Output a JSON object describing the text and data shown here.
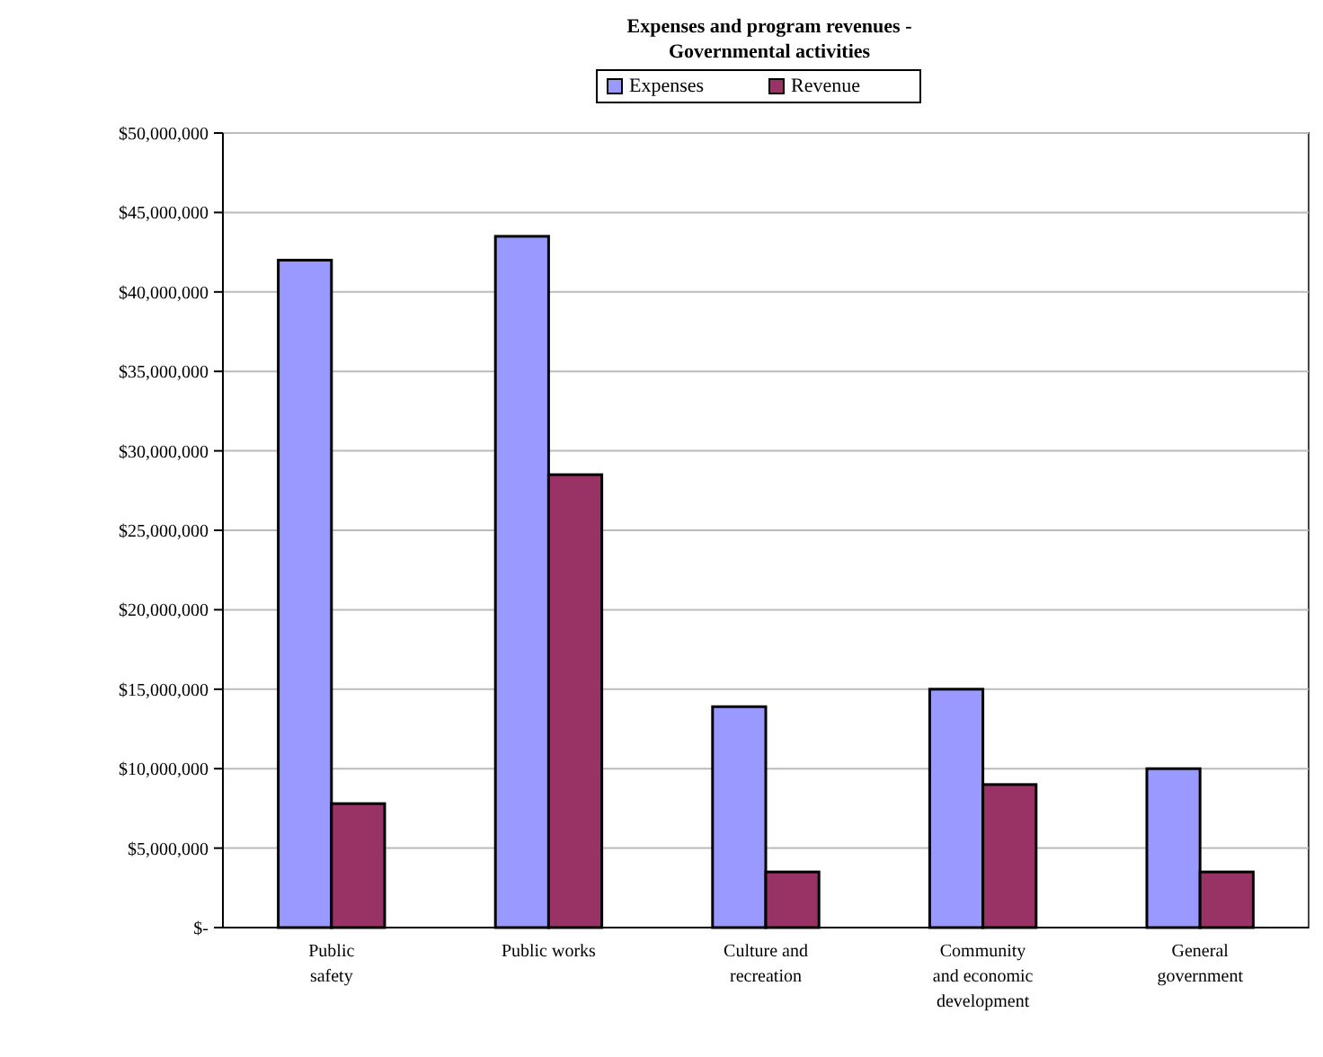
{
  "chart_data": {
    "type": "bar",
    "title": "Expenses and program revenues -\nGovernmental activities",
    "categories": [
      "Public safety",
      "Public works",
      "Culture and recreation",
      "Community and economic development",
      "General government"
    ],
    "series": [
      {
        "name": "Expenses",
        "color": "#9999ff",
        "values": [
          42000000,
          43500000,
          13900000,
          15000000,
          10000000
        ]
      },
      {
        "name": "Revenue",
        "color": "#993366",
        "values": [
          7800000,
          28500000,
          3500000,
          9000000,
          3500000
        ]
      }
    ],
    "ylim": [
      0,
      50000000
    ],
    "yticks": [
      {
        "value": 0,
        "label": "$-"
      },
      {
        "value": 5000000,
        "label": "$5,000,000"
      },
      {
        "value": 10000000,
        "label": "$10,000,000"
      },
      {
        "value": 15000000,
        "label": "$15,000,000"
      },
      {
        "value": 20000000,
        "label": "$20,000,000"
      },
      {
        "value": 25000000,
        "label": "$25,000,000"
      },
      {
        "value": 30000000,
        "label": "$30,000,000"
      },
      {
        "value": 35000000,
        "label": "$35,000,000"
      },
      {
        "value": 40000000,
        "label": "$40,000,000"
      },
      {
        "value": 45000000,
        "label": "$45,000,000"
      },
      {
        "value": 50000000,
        "label": "$50,000,000"
      }
    ],
    "grid": "y",
    "legend": "top"
  }
}
